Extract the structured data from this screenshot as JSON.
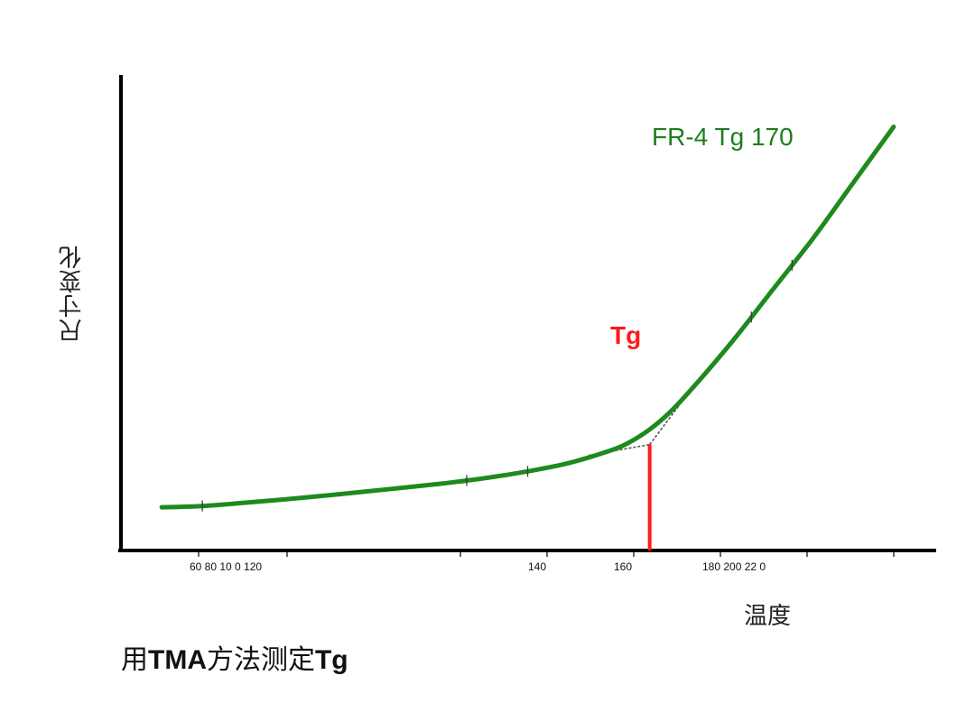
{
  "chart_data": {
    "type": "line",
    "ylabel": "尺寸变化",
    "xlabel": "温度",
    "x_tick_labels": [
      "60 80 10 0 120",
      "140",
      "160",
      "180 200 22 0"
    ],
    "series": [
      {
        "name": "FR-4 Tg 170",
        "color": "#1e8a1e",
        "points": [
          [
            50,
            10.0
          ],
          [
            60,
            10.3
          ],
          [
            70,
            11.0
          ],
          [
            80,
            11.8
          ],
          [
            90,
            12.7
          ],
          [
            100,
            13.6
          ],
          [
            110,
            14.6
          ],
          [
            120,
            15.6
          ],
          [
            130,
            16.8
          ],
          [
            140,
            18.3
          ],
          [
            150,
            20.2
          ],
          [
            160,
            23.0
          ],
          [
            165,
            25.0
          ],
          [
            170,
            28.0
          ],
          [
            175,
            32.0
          ],
          [
            180,
            37.0
          ],
          [
            190,
            48.0
          ],
          [
            200,
            60.0
          ],
          [
            210,
            72.0
          ],
          [
            220,
            85.0
          ],
          [
            230,
            98.0
          ]
        ]
      }
    ],
    "tangent_lines": {
      "color": "#555555",
      "segments": [
        [
          [
            155,
            22.0
          ],
          [
            170,
            24.5
          ]
        ],
        [
          [
            170,
            24.5
          ],
          [
            180,
            37.0
          ]
        ]
      ]
    },
    "tg_marker": {
      "label": "Tg",
      "x": 170,
      "color": "#ff1a1a"
    },
    "xlim": [
      40,
      240
    ],
    "ylim": [
      0,
      110
    ],
    "grid": false,
    "legend": "none"
  },
  "caption": {
    "pre": "用",
    "bold1": "TMA",
    "mid": "方法测定",
    "bold2": "Tg"
  }
}
